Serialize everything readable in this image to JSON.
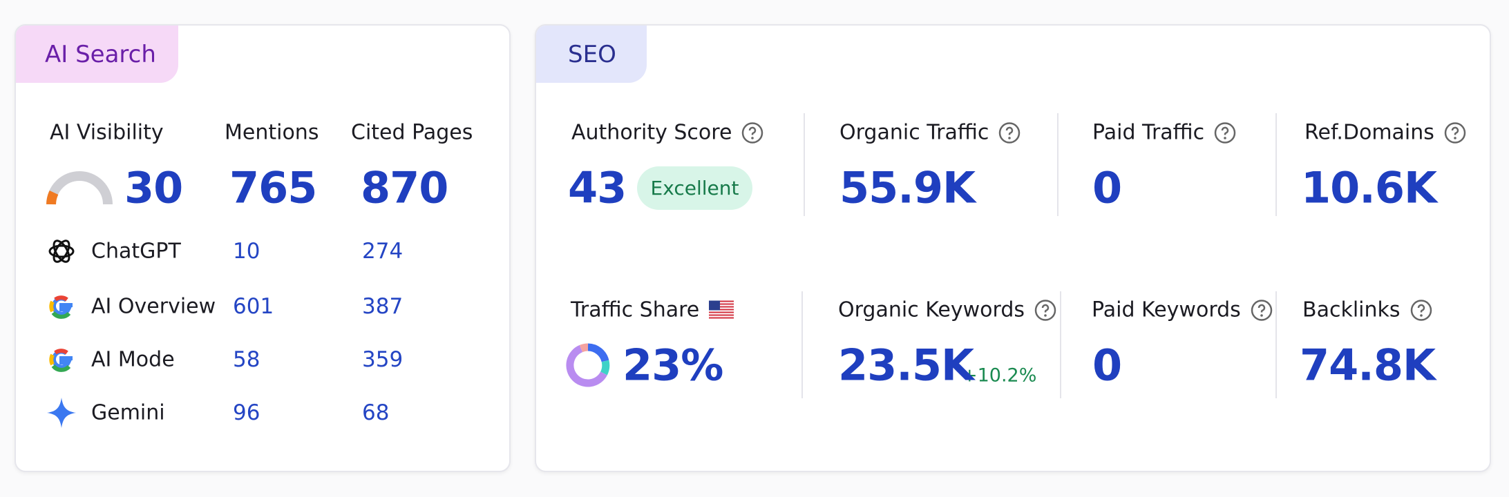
{
  "ai_search": {
    "tab": "AI Search",
    "headers": [
      "AI Visibility",
      "Mentions",
      "Cited Pages"
    ],
    "totals": [
      "30",
      "765",
      "870"
    ],
    "rows": [
      {
        "name": "ChatGPT",
        "mentions": "10",
        "cited_pages": "274"
      },
      {
        "name": "AI Overview",
        "mentions": "601",
        "cited_pages": "387"
      },
      {
        "name": "AI Mode",
        "mentions": "58",
        "cited_pages": "359"
      },
      {
        "name": "Gemini",
        "mentions": "96",
        "cited_pages": "68"
      }
    ]
  },
  "seo": {
    "tab": "SEO",
    "metrics": [
      {
        "label": "Authority Score",
        "value": "43",
        "badge": "Excellent"
      },
      {
        "label": "Organic Traffic",
        "value": "55.9K"
      },
      {
        "label": "Paid Traffic",
        "value": "0"
      },
      {
        "label": "Ref.Domains",
        "value": "10.6K"
      },
      {
        "label": "Traffic Share",
        "value": "23%"
      },
      {
        "label": "Organic Keywords",
        "value": "23.5K",
        "change": "+10.2%"
      },
      {
        "label": "Paid Keywords",
        "value": "0"
      },
      {
        "label": "Backlinks",
        "value": "74.8K"
      }
    ]
  }
}
